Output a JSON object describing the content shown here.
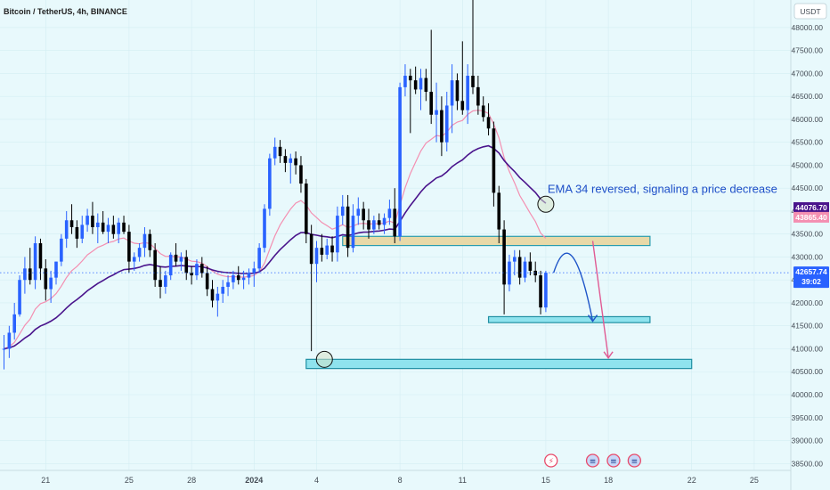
{
  "chart_data": {
    "type": "candlestick",
    "title": "Bitcoin / TetherUS, 4h, BINANCE",
    "currency_button": "USDT",
    "y_axis": {
      "ylim": [
        38350,
        48600
      ],
      "ticks": [
        "48000.00",
        "47500.00",
        "47000.00",
        "46500.00",
        "46000.00",
        "45500.00",
        "45000.00",
        "44500.00",
        "44000.00",
        "43500.00",
        "43000.00",
        "42500.00",
        "42000.00",
        "41500.00",
        "41000.00",
        "40500.00",
        "40000.00",
        "39500.00",
        "39000.00",
        "38500.00"
      ]
    },
    "x_axis": {
      "ticks": [
        {
          "label": "21",
          "bar": 8,
          "bold": false
        },
        {
          "label": "25",
          "bar": 24,
          "bold": false
        },
        {
          "label": "28",
          "bar": 36,
          "bold": false
        },
        {
          "label": "2024",
          "bar": 48,
          "bold": true
        },
        {
          "label": "4",
          "bar": 60,
          "bold": false
        },
        {
          "label": "8",
          "bar": 76,
          "bold": false
        },
        {
          "label": "11",
          "bar": 88,
          "bold": false
        },
        {
          "label": "15",
          "bar": 104,
          "bold": false
        },
        {
          "label": "18",
          "bar": 116,
          "bold": false
        },
        {
          "label": "22",
          "bar": 132,
          "bold": false
        },
        {
          "label": "25",
          "bar": 144,
          "bold": false
        }
      ]
    },
    "current_price": {
      "price": "42657.74",
      "countdown": "39:02",
      "value": 42657.74,
      "color": "#2962ff"
    },
    "ema_tags": [
      {
        "label": "44076.70",
        "value": 44076.7,
        "color": "#4a148c"
      },
      {
        "label": "43865.40",
        "value": 43865.4,
        "color": "#f48fb1"
      }
    ],
    "annotation": {
      "text": "EMA 34 reversed, signaling a price decrease",
      "bar": 104,
      "value": 44400
    },
    "zones": [
      {
        "name": "resistance-zone",
        "bar_start": 65,
        "bar_end": 124,
        "top": 43450,
        "bottom": 43250,
        "fill": "#e8d9a8",
        "stroke": "#2a9db0"
      },
      {
        "name": "target-zone-1",
        "bar_start": 93,
        "bar_end": 124,
        "top": 41700,
        "bottom": 41570,
        "fill": "#8fe3ee",
        "stroke": "#1f8fa3"
      },
      {
        "name": "target-zone-2",
        "bar_start": 58,
        "bar_end": 132,
        "top": 40770,
        "bottom": 40570,
        "fill": "#8fe3ee",
        "stroke": "#1f8fa3"
      }
    ],
    "circles": [
      {
        "name": "ema-reversal-circle",
        "bar": 104,
        "value": 44150
      },
      {
        "name": "wick-low-circle",
        "bar": 61.5,
        "value": 40770
      }
    ],
    "projections": [
      {
        "name": "blue-projection-arrow",
        "color": "#1e55c8",
        "points": [
          [
            105.5,
            42657
          ],
          [
            109,
            43100
          ],
          [
            113,
            41600
          ]
        ]
      },
      {
        "name": "pink-projection-arrow",
        "color": "#e05a93",
        "points": [
          [
            113,
            43350
          ],
          [
            116,
            40800
          ]
        ]
      }
    ],
    "events": [
      {
        "name": "flash-event-icon",
        "bar": 105,
        "glyph": "⚡",
        "fill": "#ffffff",
        "stroke": "#e84a6a",
        "color": "#e84a6a"
      },
      {
        "name": "us-event-icon-1",
        "bar": 113,
        "glyph": "≡",
        "fill": "#c8d8f8",
        "stroke": "#e84a6a",
        "color": "#1f3f8f"
      },
      {
        "name": "us-event-icon-2",
        "bar": 117,
        "glyph": "≡",
        "fill": "#c8d8f8",
        "stroke": "#e84a6a",
        "color": "#1f3f8f"
      },
      {
        "name": "us-event-icon-3",
        "bar": 121,
        "glyph": "≡",
        "fill": "#c8d8f8",
        "stroke": "#e84a6a",
        "color": "#1f3f8f"
      }
    ],
    "colors": {
      "background": "#e8f9fc",
      "up": "#2962ff",
      "down": "#000000",
      "ema_long": "#4a148c",
      "ema_short": "#f48fb1",
      "grid": "#d3eef3"
    },
    "grid": true,
    "legend_position": "top-left",
    "candles": [
      [
        41000,
        41300,
        40550,
        41000
      ],
      [
        41000,
        41500,
        40800,
        41350
      ],
      [
        41350,
        42000,
        41200,
        41750
      ],
      [
        41750,
        42600,
        41700,
        42500
      ],
      [
        42500,
        43000,
        42200,
        42750
      ],
      [
        42750,
        43200,
        42400,
        42500
      ],
      [
        42500,
        43450,
        42300,
        43300
      ],
      [
        43300,
        43400,
        42500,
        42750
      ],
      [
        42750,
        42950,
        42050,
        42300
      ],
      [
        42300,
        42700,
        42000,
        42550
      ],
      [
        42550,
        42900,
        42400,
        42900
      ],
      [
        42900,
        43500,
        42800,
        43400
      ],
      [
        43400,
        44000,
        43200,
        43800
      ],
      [
        43800,
        44150,
        43500,
        43650
      ],
      [
        43650,
        43800,
        43200,
        43400
      ],
      [
        43400,
        43900,
        43300,
        43700
      ],
      [
        43700,
        44050,
        43550,
        43900
      ],
      [
        43900,
        44200,
        43500,
        43650
      ],
      [
        43650,
        43950,
        43300,
        43750
      ],
      [
        43750,
        44000,
        43500,
        43550
      ],
      [
        43550,
        43850,
        43300,
        43700
      ],
      [
        43700,
        43900,
        43400,
        43500
      ],
      [
        43500,
        43850,
        43300,
        43750
      ],
      [
        43750,
        43900,
        43500,
        43550
      ],
      [
        43550,
        43700,
        42650,
        42900
      ],
      [
        42900,
        43100,
        42700,
        43000
      ],
      [
        43000,
        43300,
        42900,
        43200
      ],
      [
        43200,
        43650,
        43000,
        43500
      ],
      [
        43500,
        43600,
        43000,
        43150
      ],
      [
        43150,
        43300,
        42350,
        42500
      ],
      [
        42500,
        42800,
        42100,
        42350
      ],
      [
        42350,
        42700,
        42200,
        42600
      ],
      [
        42600,
        43100,
        42500,
        43050
      ],
      [
        43050,
        43300,
        42800,
        42900
      ],
      [
        42900,
        43100,
        42700,
        43000
      ],
      [
        43000,
        43150,
        42500,
        42650
      ],
      [
        42650,
        42800,
        42400,
        42600
      ],
      [
        42600,
        42950,
        42500,
        42850
      ],
      [
        42850,
        43000,
        42550,
        42650
      ],
      [
        42650,
        42800,
        42150,
        42300
      ],
      [
        42300,
        42500,
        41900,
        42050
      ],
      [
        42050,
        42350,
        41700,
        42200
      ],
      [
        42200,
        42500,
        42000,
        42350
      ],
      [
        42350,
        42600,
        42150,
        42450
      ],
      [
        42450,
        42700,
        42300,
        42600
      ],
      [
        42600,
        42800,
        42400,
        42500
      ],
      [
        42500,
        42700,
        42300,
        42550
      ],
      [
        42550,
        42750,
        42400,
        42650
      ],
      [
        42650,
        42900,
        42350,
        42750
      ],
      [
        42750,
        43300,
        42650,
        43200
      ],
      [
        43200,
        44150,
        43100,
        44050
      ],
      [
        44050,
        45250,
        43900,
        45150
      ],
      [
        45150,
        45600,
        45000,
        45400
      ],
      [
        45400,
        45550,
        45050,
        45200
      ],
      [
        45200,
        45350,
        44850,
        45050
      ],
      [
        45050,
        45250,
        44600,
        45150
      ],
      [
        45150,
        45300,
        44800,
        45000
      ],
      [
        45000,
        45200,
        44400,
        44600
      ],
      [
        44600,
        44700,
        43300,
        43500
      ],
      [
        43500,
        43700,
        40950,
        42850
      ],
      [
        42850,
        43350,
        42450,
        43200
      ],
      [
        43200,
        43500,
        42900,
        43050
      ],
      [
        43050,
        43400,
        42950,
        43250
      ],
      [
        43250,
        43450,
        42900,
        43100
      ],
      [
        43100,
        44100,
        42900,
        43900
      ],
      [
        43900,
        44350,
        43700,
        44100
      ],
      [
        44100,
        44350,
        43000,
        43200
      ],
      [
        43200,
        44150,
        43100,
        43900
      ],
      [
        43900,
        44300,
        43700,
        44050
      ],
      [
        44050,
        44200,
        43600,
        43800
      ],
      [
        43800,
        44050,
        43400,
        43600
      ],
      [
        43600,
        43900,
        43500,
        43800
      ],
      [
        43800,
        43950,
        43600,
        43700
      ],
      [
        43700,
        43950,
        43500,
        43850
      ],
      [
        43850,
        44250,
        43700,
        44050
      ],
      [
        44050,
        44500,
        43300,
        43450
      ],
      [
        43450,
        46800,
        43350,
        46700
      ],
      [
        46700,
        47200,
        46500,
        46950
      ],
      [
        46950,
        47100,
        45700,
        46850
      ],
      [
        46850,
        47150,
        46550,
        46650
      ],
      [
        46650,
        47100,
        46200,
        46900
      ],
      [
        46900,
        47100,
        46400,
        46600
      ],
      [
        46600,
        47950,
        45900,
        46100
      ],
      [
        46100,
        46800,
        45500,
        46200
      ],
      [
        46200,
        46500,
        45200,
        45500
      ],
      [
        45500,
        46600,
        45300,
        46300
      ],
      [
        46300,
        47200,
        45700,
        46850
      ],
      [
        46850,
        47000,
        46200,
        46400
      ],
      [
        46400,
        47700,
        46100,
        46200
      ],
      [
        46200,
        47200,
        45900,
        46950
      ],
      [
        46950,
        48600,
        46550,
        46700
      ],
      [
        46700,
        46950,
        46100,
        46300
      ],
      [
        46300,
        46500,
        45950,
        46050
      ],
      [
        46050,
        46350,
        45650,
        45800
      ],
      [
        45800,
        45950,
        44100,
        44400
      ],
      [
        44400,
        44550,
        43300,
        43600
      ],
      [
        43600,
        43800,
        41750,
        42400
      ],
      [
        42400,
        43050,
        42250,
        42900
      ],
      [
        42900,
        43150,
        42600,
        43000
      ],
      [
        43000,
        43150,
        42400,
        42550
      ],
      [
        42550,
        43000,
        42450,
        42900
      ],
      [
        42900,
        43100,
        42600,
        42700
      ],
      [
        42700,
        42900,
        42450,
        42600
      ],
      [
        42600,
        42700,
        41750,
        41900
      ],
      [
        41900,
        42700,
        41800,
        42657.74
      ]
    ]
  }
}
